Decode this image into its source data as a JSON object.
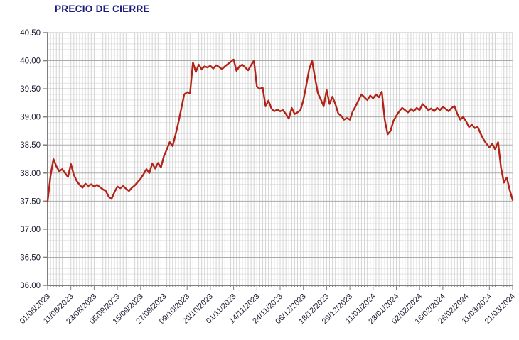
{
  "title": "PRECIO DE CIERRE",
  "colors": {
    "title": "#1B1B7B",
    "line": "#B22318",
    "axis": "#7F7F7F",
    "grid_vertical": "#D4D4D4",
    "grid_minor_h": "#E3E3E3",
    "grid_major_h": "#ABABAB",
    "plot_border": "#C2C2C2",
    "tick_label": "#1C1C30",
    "background": "#FFFFFF"
  },
  "chart_data": {
    "type": "line",
    "title": "PRECIO DE CIERRE",
    "xlabel": "",
    "ylabel": "",
    "ylim": [
      36.0,
      40.5
    ],
    "y_major_step": 0.5,
    "y_minor_step": 0.1,
    "grid": "on",
    "legend": "none",
    "y_tick_labels": [
      "40.50",
      "40.00",
      "39.50",
      "39.00",
      "38.50",
      "38.00",
      "37.50",
      "37.00",
      "36.50",
      "36.00"
    ],
    "x_tick_labels": [
      "01/08/2023",
      "11/08/2023",
      "23/08/2023",
      "05/09/2023",
      "15/09/2023",
      "27/09/2023",
      "09/10/2023",
      "20/10/2023",
      "01/11/2023",
      "14/11/2023",
      "24/11/2023",
      "06/12/2023",
      "18/12/2023",
      "29/12/2023",
      "11/01/2024",
      "23/01/2024",
      "02/02/2024",
      "16/02/2024",
      "28/02/2024",
      "11/03/2024",
      "21/03/2024"
    ],
    "x_tick_every": 8,
    "values": [
      37.5,
      37.95,
      38.25,
      38.12,
      38.03,
      38.07,
      38.0,
      37.93,
      38.16,
      37.97,
      37.86,
      37.79,
      37.74,
      37.81,
      37.77,
      37.8,
      37.76,
      37.79,
      37.75,
      37.71,
      37.68,
      37.58,
      37.54,
      37.66,
      37.76,
      37.73,
      37.77,
      37.72,
      37.68,
      37.74,
      37.78,
      37.84,
      37.9,
      37.98,
      38.07,
      38.0,
      38.17,
      38.08,
      38.18,
      38.1,
      38.3,
      38.42,
      38.55,
      38.48,
      38.68,
      38.9,
      39.15,
      39.4,
      39.44,
      39.42,
      39.97,
      39.8,
      39.93,
      39.85,
      39.9,
      39.88,
      39.91,
      39.86,
      39.92,
      39.89,
      39.85,
      39.9,
      39.94,
      39.98,
      40.02,
      39.82,
      39.9,
      39.93,
      39.88,
      39.83,
      39.92,
      40.0,
      39.54,
      39.5,
      39.52,
      39.19,
      39.29,
      39.15,
      39.1,
      39.13,
      39.1,
      39.12,
      39.05,
      38.97,
      39.16,
      39.05,
      39.08,
      39.12,
      39.3,
      39.56,
      39.85,
      40.0,
      39.7,
      39.42,
      39.31,
      39.19,
      39.48,
      39.23,
      39.36,
      39.23,
      39.06,
      39.02,
      38.95,
      38.98,
      38.95,
      39.1,
      39.19,
      39.3,
      39.4,
      39.35,
      39.3,
      39.38,
      39.33,
      39.4,
      39.35,
      39.45,
      38.95,
      38.69,
      38.75,
      38.93,
      39.02,
      39.1,
      39.16,
      39.12,
      39.08,
      39.14,
      39.1,
      39.16,
      39.12,
      39.23,
      39.18,
      39.12,
      39.15,
      39.1,
      39.16,
      39.12,
      39.18,
      39.14,
      39.1,
      39.16,
      39.19,
      39.05,
      38.95,
      39.0,
      38.92,
      38.82,
      38.86,
      38.8,
      38.82,
      38.7,
      38.6,
      38.52,
      38.46,
      38.52,
      38.42,
      38.55,
      38.1,
      37.83,
      37.92,
      37.7,
      37.52
    ]
  }
}
